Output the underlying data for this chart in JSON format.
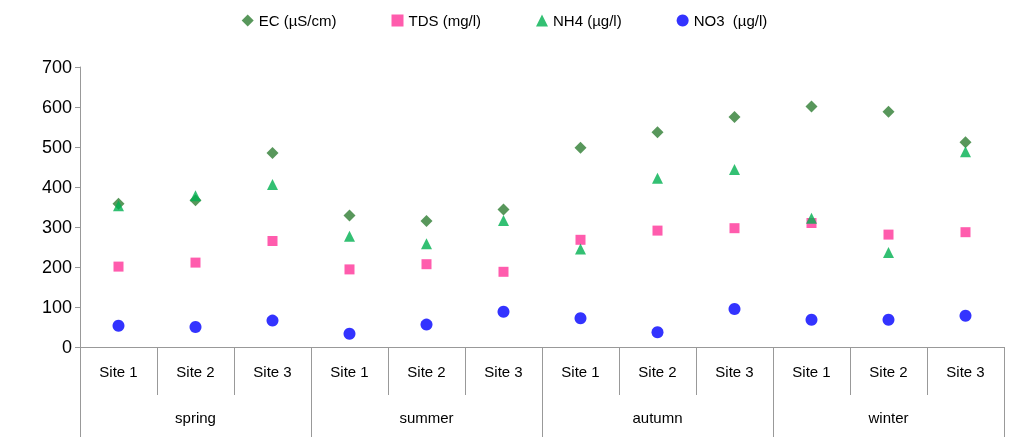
{
  "chart_data": {
    "type": "scatter",
    "categories": [
      "Site 1",
      "Site 2",
      "Site 3",
      "Site 1",
      "Site 2",
      "Site 3",
      "Site 1",
      "Site 2",
      "Site 3",
      "Site 1",
      "Site 2",
      "Site 3"
    ],
    "annotations": [
      "spring",
      "summer",
      "autumn",
      "winter"
    ],
    "series": [
      {
        "name": "EC (µS/cm)",
        "color": "#2e7d32",
        "marker": "diamond",
        "values": [
          358,
          367,
          485,
          329,
          315,
          344,
          498,
          537,
          575,
          601,
          588,
          512
        ]
      },
      {
        "name": "TDS (mg/l)",
        "color": "#ff3399",
        "marker": "square",
        "values": [
          201,
          211,
          265,
          194,
          207,
          188,
          268,
          291,
          297,
          310,
          281,
          287
        ]
      },
      {
        "name": "NH4 (µg/l)",
        "color": "#00b050",
        "marker": "triangle",
        "values": [
          353,
          378,
          406,
          277,
          258,
          316,
          245,
          422,
          444,
          322,
          236,
          488
        ]
      },
      {
        "name": "NO3  (µg/l)",
        "color": "#0000ff",
        "marker": "circle",
        "values": [
          53,
          50,
          66,
          33,
          56,
          88,
          72,
          37,
          95,
          68,
          68,
          78
        ]
      }
    ],
    "ylim": [
      0,
      700
    ],
    "yticks": [
      0,
      100,
      200,
      300,
      400,
      500,
      600,
      700
    ],
    "grid": false,
    "legend": "top"
  }
}
